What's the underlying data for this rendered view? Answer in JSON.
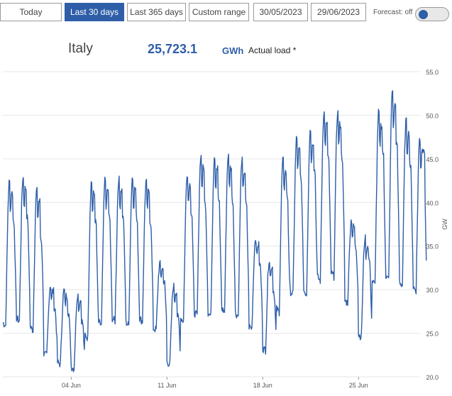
{
  "toolbar": {
    "buttons": [
      "Today",
      "Last 30 days",
      "Last 365 days",
      "Custom range"
    ],
    "active": "Last 30 days",
    "date_from": "30/05/2023",
    "date_to": "29/06/2023",
    "forecast_label": "Forecast: off",
    "forecast_on": false
  },
  "summary": {
    "country": "Italy",
    "total": "25,723.1",
    "unit": "GWh",
    "note": "Actual load *"
  },
  "colors": {
    "accent": "#2e5ea8",
    "line": "#2e5ea8",
    "grid": "#e6e6e6"
  },
  "chart_data": {
    "type": "line",
    "ylabel": "GW",
    "ylim": [
      20,
      55
    ],
    "yticks": [
      "20.0",
      "25.0",
      "30.0",
      "35.0",
      "40.0",
      "45.0",
      "50.0",
      "55.0"
    ],
    "x_range_days": [
      0,
      30.5
    ],
    "x_ticks": [
      {
        "label": "04 Jun",
        "day": 5
      },
      {
        "label": "11 Jun",
        "day": 12
      },
      {
        "label": "18 Jun",
        "day": 19
      },
      {
        "label": "25 Jun",
        "day": 26
      }
    ],
    "grid": true,
    "series": [
      {
        "daily": [
          {
            "day": 0,
            "min": 25.0,
            "max": 42.5,
            "late": 38.0
          },
          {
            "day": 1,
            "min": 25.5,
            "max": 43.0,
            "late": 38.5
          },
          {
            "day": 2,
            "min": 24.5,
            "max": 41.5,
            "late": 36.0
          },
          {
            "day": 3,
            "min": 22.0,
            "max": 30.5,
            "late": 28.0
          },
          {
            "day": 4,
            "min": 21.0,
            "max": 30.0,
            "late": 27.5
          },
          {
            "day": 5,
            "min": 20.5,
            "max": 29.5,
            "late": 26.5
          },
          {
            "day": 6,
            "min": 23.5,
            "max": 42.5,
            "late": 38.0
          },
          {
            "day": 7,
            "min": 25.0,
            "max": 42.8,
            "late": 38.5
          },
          {
            "day": 8,
            "min": 25.5,
            "max": 42.8,
            "late": 38.5
          },
          {
            "day": 9,
            "min": 25.0,
            "max": 43.0,
            "late": 38.5
          },
          {
            "day": 10,
            "min": 25.5,
            "max": 42.5,
            "late": 38.0
          },
          {
            "day": 11,
            "min": 25.0,
            "max": 33.0,
            "late": 31.0
          },
          {
            "day": 12,
            "min": 21.0,
            "max": 30.5,
            "late": 27.0
          },
          {
            "day": 13,
            "min": 25.5,
            "max": 43.5,
            "late": 39.0
          },
          {
            "day": 14,
            "min": 26.0,
            "max": 45.5,
            "late": 40.0
          },
          {
            "day": 15,
            "min": 26.0,
            "max": 45.5,
            "late": 40.5
          },
          {
            "day": 16,
            "min": 26.5,
            "max": 45.5,
            "late": 40.5
          },
          {
            "day": 17,
            "min": 26.0,
            "max": 45.0,
            "late": 40.0
          },
          {
            "day": 18,
            "min": 25.0,
            "max": 36.0,
            "late": 33.0
          },
          {
            "day": 19,
            "min": 22.5,
            "max": 33.5,
            "late": 30.0
          },
          {
            "day": 20,
            "min": 26.5,
            "max": 45.0,
            "late": 41.0
          },
          {
            "day": 21,
            "min": 28.5,
            "max": 47.5,
            "late": 43.0
          },
          {
            "day": 22,
            "min": 28.5,
            "max": 48.5,
            "late": 44.0
          },
          {
            "day": 23,
            "min": 30.0,
            "max": 50.5,
            "late": 45.5
          },
          {
            "day": 24,
            "min": 30.5,
            "max": 50.5,
            "late": 45.5
          },
          {
            "day": 25,
            "min": 28.0,
            "max": 38.0,
            "late": 35.0
          },
          {
            "day": 26,
            "min": 24.0,
            "max": 36.0,
            "late": 33.5
          },
          {
            "day": 27,
            "min": 29.5,
            "max": 50.5,
            "late": 46.0
          },
          {
            "day": 28,
            "min": 30.0,
            "max": 53.0,
            "late": 47.0
          },
          {
            "day": 29,
            "min": 29.5,
            "max": 49.5,
            "late": 44.5
          },
          {
            "day": 30,
            "min": 29.0,
            "max": 47.5,
            "late": 46.5
          }
        ]
      }
    ]
  }
}
